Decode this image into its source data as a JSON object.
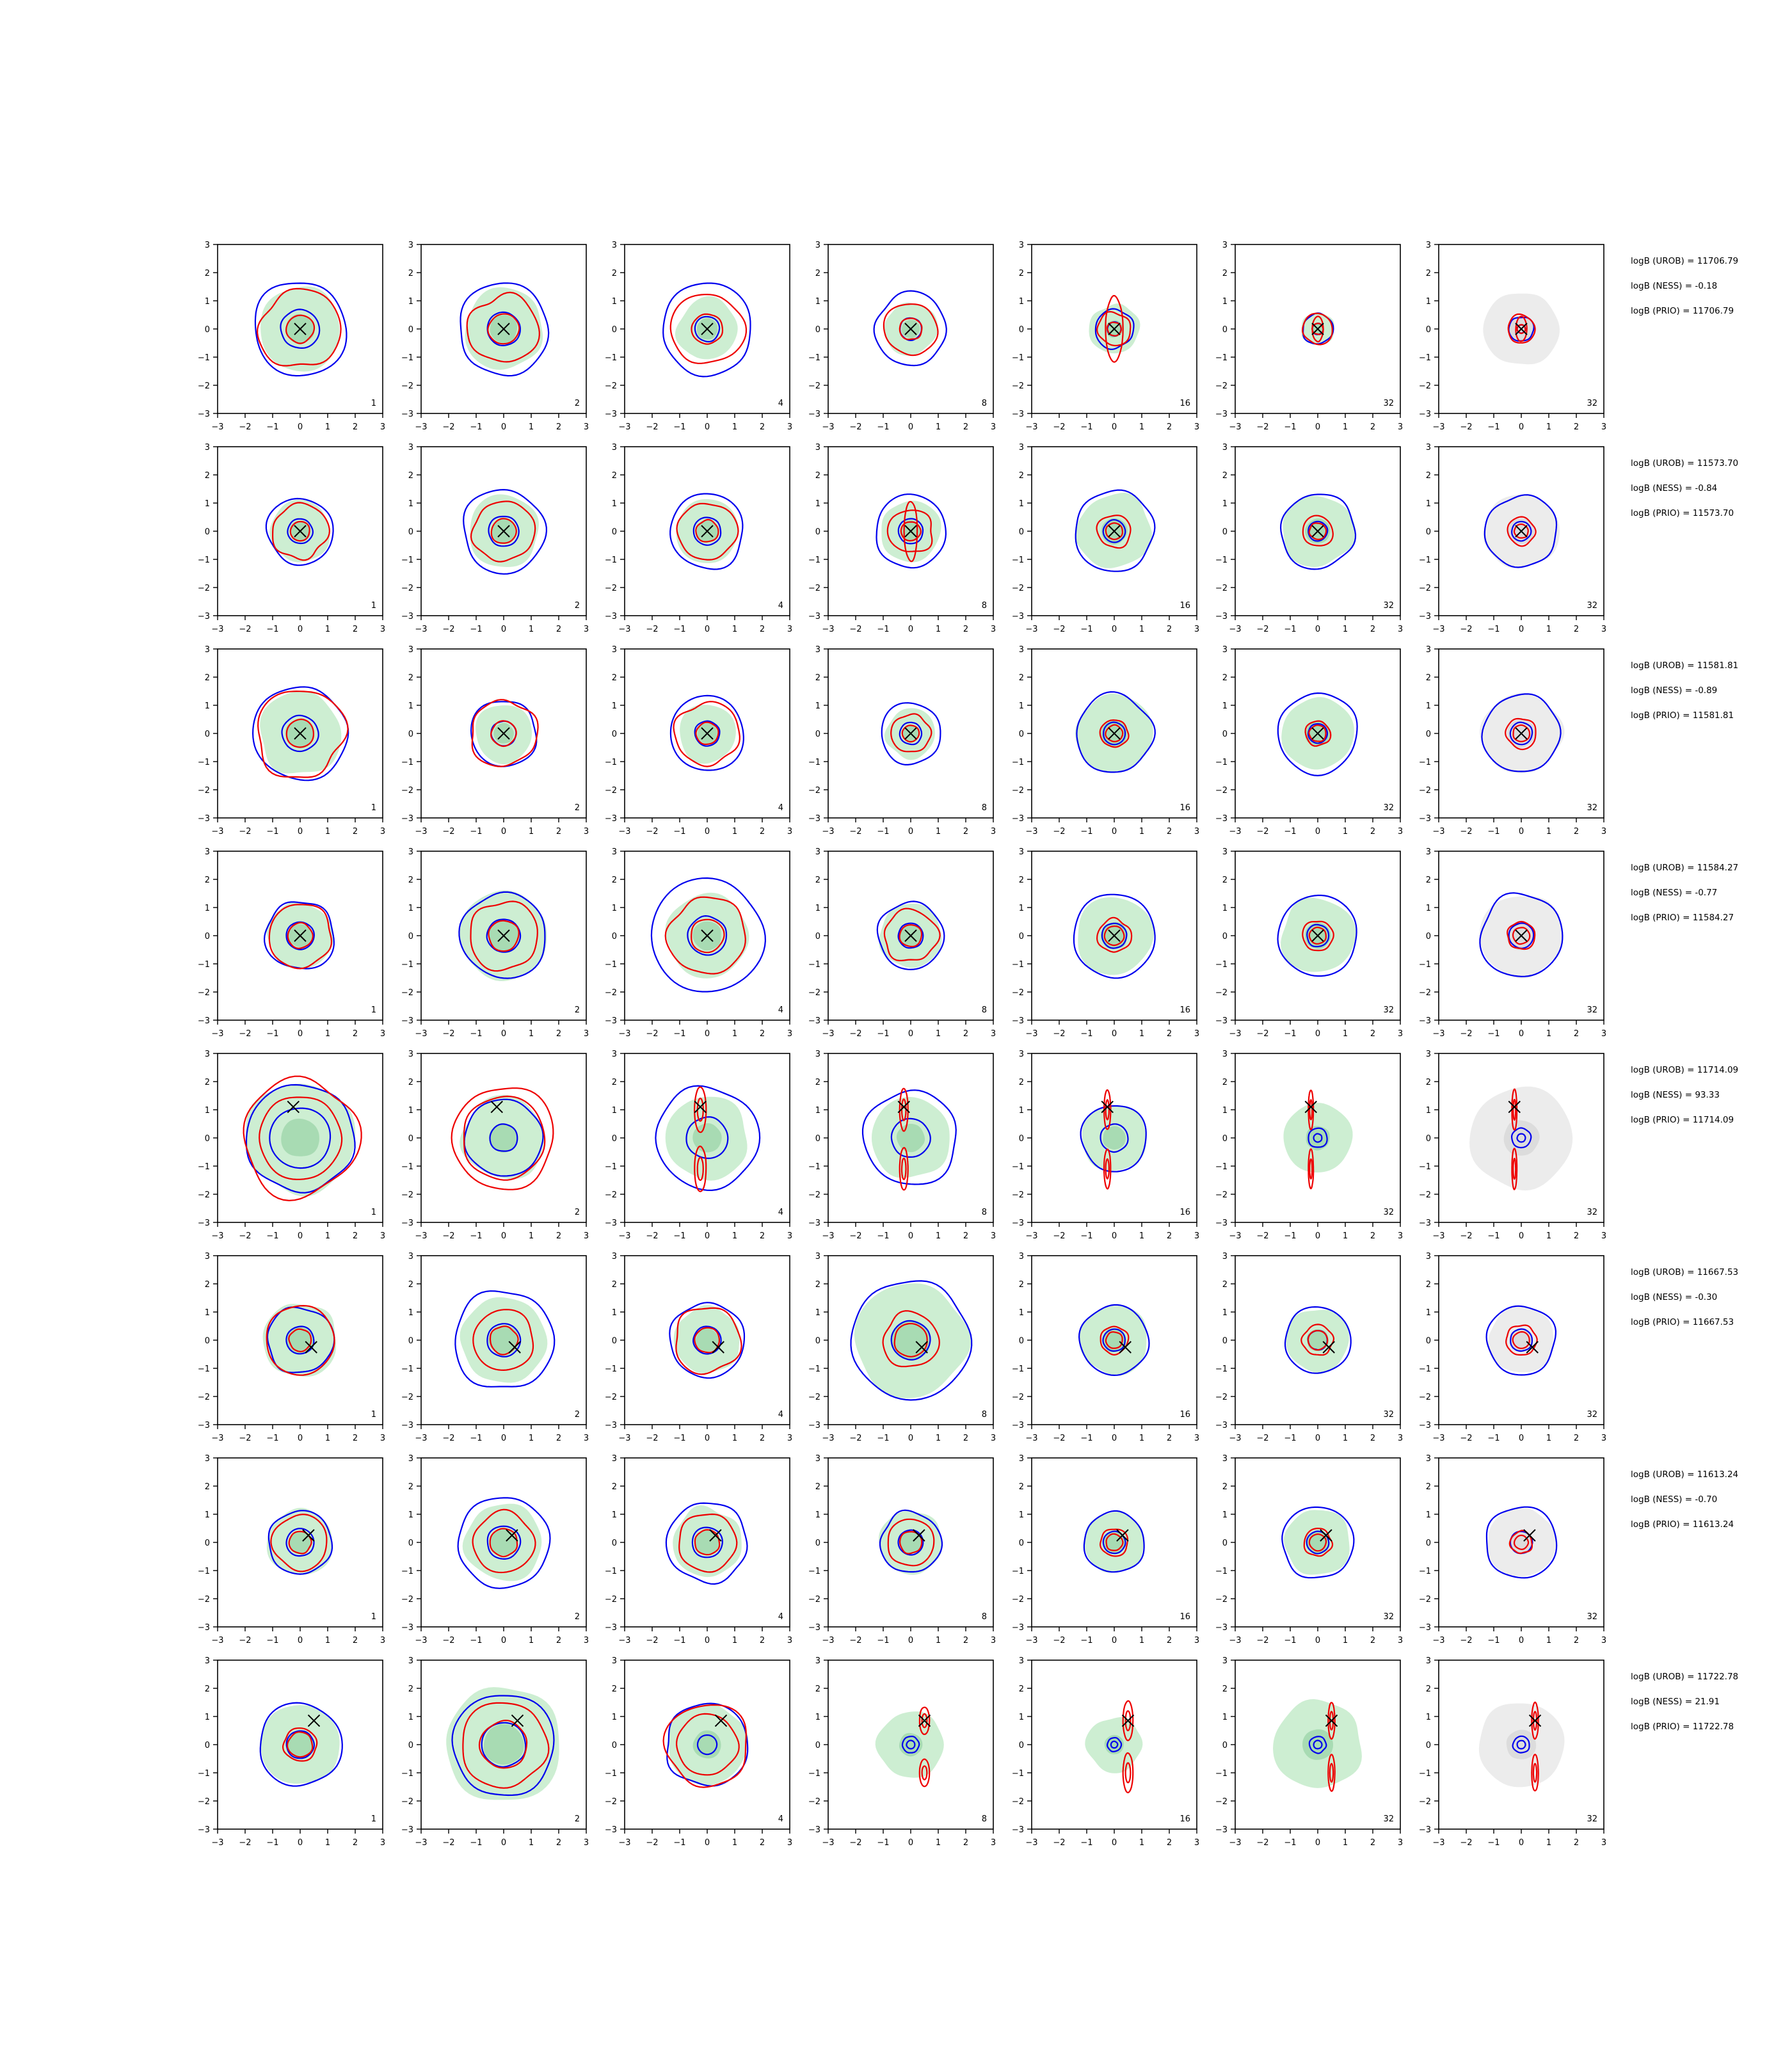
{
  "chart_data": {
    "type": "contour-grid",
    "rows": 8,
    "cols": 7,
    "xlim": [
      -3,
      3
    ],
    "ylim": [
      -3,
      3
    ],
    "ticks": [
      -3,
      -2,
      -1,
      0,
      1,
      2,
      3
    ],
    "tick_labels": [
      "−3",
      "−2",
      "−1",
      "0",
      "1",
      "2",
      "3"
    ],
    "panel_labels": [
      "1",
      "2",
      "4",
      "8",
      "16",
      "32",
      "32"
    ],
    "grid": false,
    "colors": {
      "posterior_fill": "#cdeed2",
      "posterior_fill_inner": "#a8dbb3",
      "prior_fill": "#ececec",
      "prior_fill_inner": "#dcdcdc",
      "blue_contour": "#0000ee",
      "red_contour": "#ee0000",
      "marker": "#000000"
    },
    "last_column_fill": "prior",
    "rows_data": [
      {
        "marker": [
          0.0,
          0.0
        ],
        "logB_UROB": "logB (UROB) = 11706.79",
        "logB_NESS": "logB (NESS) = -0.18",
        "logB_PRIO": "logB (PRIO) = 11706.79",
        "green_radius": [
          1.5,
          1.45,
          1.1,
          0.95,
          0.9,
          0.6,
          0.0
        ],
        "blue_outer": [
          1.7,
          1.65,
          1.65,
          1.3,
          0.7,
          0.55,
          0.45
        ],
        "blue_inner": [
          0.7,
          0.6,
          0.45,
          0.4,
          0.25,
          0.2,
          0.15
        ],
        "red_outer": [
          1.45,
          1.25,
          1.3,
          0.95,
          0.6,
          0.55,
          0.5
        ],
        "red_inner": [
          0.5,
          0.55,
          0.55,
          0.4,
          0.25,
          0.2,
          0.15
        ],
        "red_elong": [
          [
            0,
            0
          ],
          [
            0,
            0
          ],
          [
            0,
            0
          ],
          [
            0,
            0
          ],
          [
            0.4,
            1.3
          ],
          [
            0.25,
            0.5
          ],
          [
            0.25,
            0.5
          ]
        ],
        "prior_radius": 1.35
      },
      {
        "marker": [
          0.0,
          0.0
        ],
        "logB_UROB": "logB (UROB) = 11573.70",
        "logB_NESS": "logB (NESS) = -0.84",
        "logB_PRIO": "logB (PRIO) = 11573.70",
        "green_radius": [
          1.1,
          1.3,
          1.15,
          1.1,
          1.35,
          1.3,
          0.0
        ],
        "blue_outer": [
          1.2,
          1.5,
          1.35,
          1.3,
          1.45,
          1.35,
          1.3
        ],
        "blue_inner": [
          0.45,
          0.55,
          0.5,
          0.45,
          0.4,
          0.35,
          0.35
        ],
        "red_outer": [
          1.0,
          1.1,
          1.05,
          0.8,
          0.6,
          0.55,
          0.5
        ],
        "red_inner": [
          0.35,
          0.45,
          0.4,
          0.35,
          0.3,
          0.3,
          0.25
        ],
        "red_elong": [
          [
            0,
            0
          ],
          [
            0,
            0
          ],
          [
            0,
            0
          ],
          [
            0.3,
            1.2
          ],
          [
            0,
            0
          ],
          [
            0,
            0
          ],
          [
            0,
            0
          ]
        ],
        "prior_radius": 1.35
      },
      {
        "marker": [
          0.0,
          0.0
        ],
        "logB_UROB": "logB (UROB) = 11581.81",
        "logB_NESS": "logB (NESS) = -0.89",
        "logB_PRIO": "logB (PRIO) = 11581.81",
        "green_radius": [
          1.5,
          1.05,
          1.05,
          0.9,
          1.4,
          1.3,
          0.0
        ],
        "blue_outer": [
          1.7,
          1.2,
          1.35,
          1.1,
          1.4,
          1.45,
          1.4
        ],
        "blue_inner": [
          0.65,
          0.45,
          0.45,
          0.4,
          0.4,
          0.35,
          0.4
        ],
        "red_outer": [
          1.6,
          1.2,
          1.15,
          0.7,
          0.5,
          0.45,
          0.55
        ],
        "red_inner": [
          0.5,
          0.45,
          0.4,
          0.3,
          0.3,
          0.3,
          0.3
        ],
        "red_elong": [
          [
            0,
            0
          ],
          [
            0,
            0
          ],
          [
            0,
            0
          ],
          [
            0,
            0
          ],
          [
            0,
            0
          ],
          [
            0,
            0
          ],
          [
            0,
            0
          ]
        ],
        "prior_radius": 1.45
      },
      {
        "marker": [
          0.0,
          0.0
        ],
        "logB_UROB": "logB (UROB) = 11584.27",
        "logB_NESS": "logB (NESS) = -0.77",
        "logB_PRIO": "logB (PRIO) = 11584.27",
        "green_radius": [
          1.2,
          1.6,
          1.5,
          1.15,
          1.4,
          1.35,
          0.0
        ],
        "blue_outer": [
          1.25,
          1.55,
          2.05,
          1.2,
          1.5,
          1.45,
          1.5
        ],
        "blue_inner": [
          0.5,
          0.6,
          0.7,
          0.45,
          0.45,
          0.4,
          0.45
        ],
        "red_outer": [
          1.15,
          1.25,
          1.4,
          0.95,
          0.6,
          0.55,
          0.5
        ],
        "red_inner": [
          0.45,
          0.55,
          0.6,
          0.4,
          0.35,
          0.3,
          0.3
        ],
        "red_elong": [
          [
            0,
            0
          ],
          [
            0,
            0
          ],
          [
            0,
            0
          ],
          [
            0,
            0
          ],
          [
            0,
            0
          ],
          [
            0,
            0
          ],
          [
            0,
            0
          ]
        ],
        "prior_radius": 1.5
      },
      {
        "marker": [
          -0.25,
          1.1
        ],
        "logB_UROB": "logB (UROB) = 11714.09",
        "logB_NESS": "logB (NESS) = 93.33",
        "logB_PRIO": "logB (PRIO) = 11714.09",
        "green_radius": [
          2.0,
          1.5,
          1.5,
          1.45,
          1.2,
          1.25,
          0.0
        ],
        "blue_outer": [
          1.95,
          1.4,
          1.85,
          1.7,
          1.2,
          0.35,
          0.35
        ],
        "blue_inner": [
          1.1,
          0.5,
          0.75,
          0.7,
          0.5,
          0.15,
          0.15
        ],
        "red_outer": [
          2.1,
          1.85,
          0.6,
          0.55,
          0.5,
          0.35,
          0.35
        ],
        "red_inner": [
          1.5,
          1.5,
          0.3,
          0.3,
          0.25,
          0.2,
          0.2
        ],
        "red_elong": [
          [
            0,
            0
          ],
          [
            0,
            0
          ],
          [
            0.35,
            1.5
          ],
          [
            0.25,
            1.4
          ],
          [
            0.2,
            1.3
          ],
          [
            0.15,
            1.3
          ],
          [
            0.15,
            1.35
          ]
        ],
        "prior_radius": 1.85
      },
      {
        "marker": [
          0.4,
          -0.25
        ],
        "logB_UROB": "logB (UROB) = 11667.53",
        "logB_NESS": "logB (NESS) = -0.30",
        "logB_PRIO": "logB (PRIO) = 11667.53",
        "green_radius": [
          1.35,
          1.55,
          1.2,
          2.05,
          1.25,
          1.15,
          0.0
        ],
        "blue_outer": [
          1.2,
          1.8,
          1.35,
          2.15,
          1.25,
          1.2,
          1.25
        ],
        "blue_inner": [
          0.5,
          0.6,
          0.5,
          0.7,
          0.4,
          0.35,
          0.4
        ],
        "red_outer": [
          1.25,
          1.1,
          1.2,
          1.0,
          0.5,
          0.55,
          0.55
        ],
        "red_inner": [
          0.4,
          0.5,
          0.45,
          0.6,
          0.3,
          0.35,
          0.3
        ],
        "red_elong": [
          [
            0,
            0
          ],
          [
            0,
            0
          ],
          [
            0,
            0
          ],
          [
            0,
            0
          ],
          [
            0,
            0
          ],
          [
            0,
            0
          ],
          [
            0,
            0
          ]
        ],
        "prior_radius": 1.2
      },
      {
        "marker": [
          0.3,
          0.25
        ],
        "logB_UROB": "logB (UROB) = 11613.24",
        "logB_NESS": "logB (NESS) = -0.70",
        "logB_PRIO": "logB (PRIO) = 11613.24",
        "green_radius": [
          1.2,
          1.4,
          1.25,
          1.15,
          1.1,
          1.2,
          0.0
        ],
        "blue_outer": [
          1.15,
          1.65,
          1.45,
          1.1,
          1.1,
          1.3,
          1.3
        ],
        "blue_inner": [
          0.5,
          0.6,
          0.55,
          0.45,
          0.4,
          0.4,
          0.4
        ],
        "red_outer": [
          1.0,
          1.1,
          1.05,
          0.85,
          0.5,
          0.5,
          0.4
        ],
        "red_inner": [
          0.4,
          0.5,
          0.45,
          0.4,
          0.3,
          0.3,
          0.25
        ],
        "red_elong": [
          [
            0,
            0
          ],
          [
            0,
            0
          ],
          [
            0,
            0
          ],
          [
            0,
            0
          ],
          [
            0,
            0
          ],
          [
            0,
            0
          ],
          [
            0,
            0
          ]
        ],
        "prior_radius": 1.25
      },
      {
        "marker": [
          0.5,
          0.85
        ],
        "logB_UROB": "logB (UROB) = 11722.78",
        "logB_NESS": "logB (NESS) = 21.91",
        "logB_PRIO": "logB (PRIO) = 11722.78",
        "green_radius": [
          1.45,
          2.1,
          1.45,
          1.2,
          1.0,
          1.6,
          0.0
        ],
        "blue_outer": [
          1.5,
          1.85,
          1.5,
          0.3,
          0.25,
          0.3,
          0.3
        ],
        "blue_inner": [
          0.5,
          0.8,
          0.35,
          0.15,
          0.12,
          0.15,
          0.15
        ],
        "red_outer": [
          0.6,
          1.55,
          1.5,
          1.05,
          0.5,
          0.4,
          0.4
        ],
        "red_inner": [
          0.45,
          0.85,
          1.1,
          0.7,
          0.3,
          0.25,
          0.25
        ],
        "red_elong": [
          [
            0,
            0
          ],
          [
            0,
            0
          ],
          [
            0,
            0
          ],
          [
            0.3,
            0.9
          ],
          [
            0.3,
            1.3
          ],
          [
            0.2,
            1.2
          ],
          [
            0.2,
            1.2
          ]
        ],
        "prior_radius": 1.55
      }
    ]
  }
}
